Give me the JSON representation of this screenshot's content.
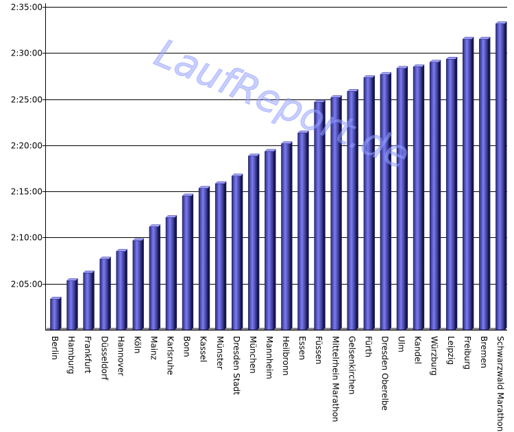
{
  "chart_data": {
    "type": "bar",
    "title": "",
    "xlabel": "",
    "ylabel": "",
    "y_unit": "h:mm:ss",
    "ylim": [
      "2:00:00",
      "2:35:00"
    ],
    "y_ticks": [
      "2:05:00",
      "2:10:00",
      "2:15:00",
      "2:20:00",
      "2:25:00",
      "2:30:00",
      "2:35:00"
    ],
    "grid": true,
    "legend": "none",
    "watermark": "LaufReport.de",
    "bar_color": "#5c5cd6",
    "categories": [
      "Berlin",
      "Hamburg",
      "Frankfurt",
      "Düsseldorf",
      "Hannover",
      "Köln",
      "Mainz",
      "Karlsruhe",
      "Bonn",
      "Kassel",
      "Münster",
      "Dresden Stadt",
      "München",
      "Mannheim",
      "Heilbronn",
      "Essen",
      "Füssen",
      "Mittelrhein Marathon",
      "Gelsenkirchen",
      "Fürth",
      "Dresden Oberelbe",
      "Ulm",
      "Kandel",
      "Würzburg",
      "Leipzig",
      "Freiburg",
      "Bremen",
      "Schwarzwald Marathon"
    ],
    "values": [
      "2:03:20",
      "2:05:20",
      "2:06:10",
      "2:07:40",
      "2:08:30",
      "2:09:40",
      "2:11:10",
      "2:12:10",
      "2:14:30",
      "2:15:20",
      "2:15:50",
      "2:16:40",
      "2:18:50",
      "2:19:20",
      "2:20:10",
      "2:21:20",
      "2:24:40",
      "2:25:10",
      "2:25:50",
      "2:27:20",
      "2:27:40",
      "2:28:20",
      "2:28:30",
      "2:29:00",
      "2:29:20",
      "2:31:30",
      "2:31:30",
      "2:33:10"
    ]
  }
}
